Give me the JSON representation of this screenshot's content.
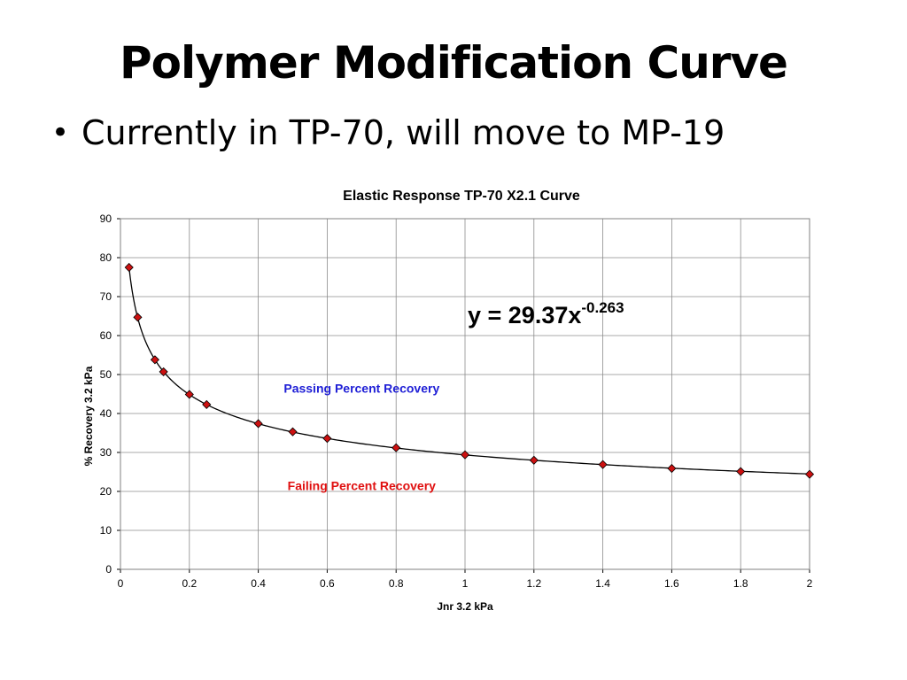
{
  "slide": {
    "title": "Polymer Modification Curve",
    "bullet": "Currently in TP-70, will move to MP-19"
  },
  "chart_data": {
    "type": "scatter",
    "title": "Elastic Response TP-70 X2.1 Curve",
    "xlabel": "Jnr 3.2 kPa",
    "ylabel": "% Recovery 3.2 kPa",
    "xlim": [
      0,
      2
    ],
    "ylim": [
      0,
      90
    ],
    "xticks": [
      0,
      0.2,
      0.4,
      0.6,
      0.8,
      1,
      1.2,
      1.4,
      1.6,
      1.8,
      2
    ],
    "yticks": [
      0,
      10,
      20,
      30,
      40,
      50,
      60,
      70,
      80,
      90
    ],
    "grid": true,
    "series": [
      {
        "x": [
          0.025,
          0.05,
          0.1,
          0.125,
          0.2,
          0.25,
          0.4,
          0.5,
          0.6,
          0.8,
          1.0,
          1.2,
          1.4,
          1.6,
          1.8,
          2.0
        ],
        "y": [
          77.5,
          64.7,
          53.8,
          50.7,
          44.9,
          42.3,
          37.4,
          35.3,
          33.6,
          31.2,
          29.4,
          28.0,
          26.9,
          25.9,
          25.1,
          24.4
        ]
      }
    ],
    "trendline": {
      "equation_base": "y = 29.37x",
      "equation_exponent": "-0.263",
      "a": 29.37,
      "b": -0.263
    },
    "annotations": [
      {
        "text": "Passing Percent Recovery",
        "x": 0.7,
        "y": 46.5,
        "color": "#1f1fd6"
      },
      {
        "text": "Failing Percent Recovery",
        "x": 0.7,
        "y": 21.5,
        "color": "#e01010"
      }
    ],
    "marker_color": "#cc1111"
  }
}
